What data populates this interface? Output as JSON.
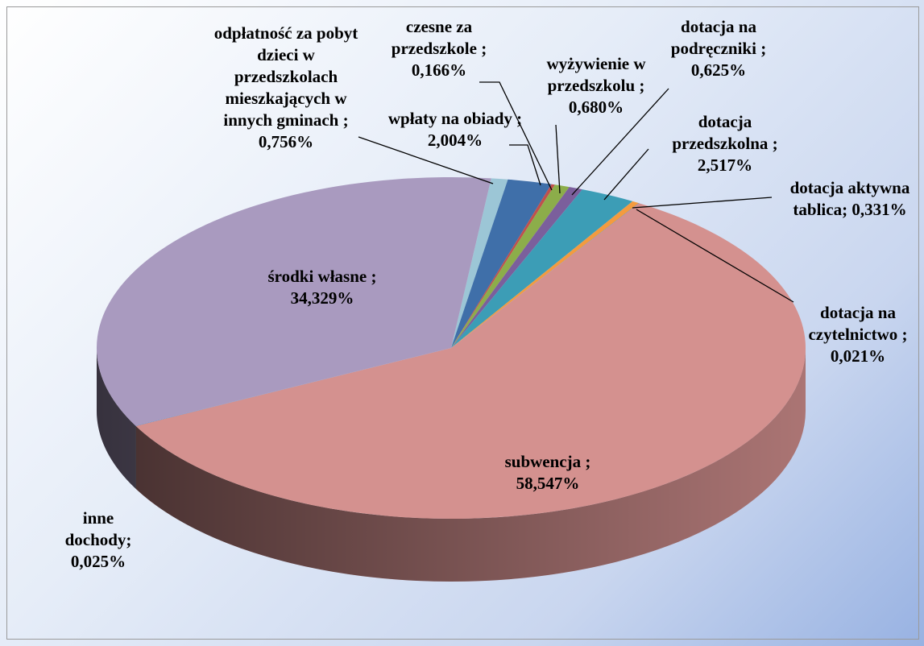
{
  "chart_data": {
    "type": "pie3d",
    "categories": [
      "odpłatność za pobyt dzieci w przedszkolach mieszkających w innych gminach ;",
      "wpłaty na obiady ;",
      "czesne za przedszkole ;",
      "wyżywienie w przedszkolu ;",
      "dotacja na podręczniki ;",
      "dotacja przedszkolna ;",
      "dotacja aktywna tablica;",
      "dotacja na czytelnictwo ;",
      "subwencja ;",
      "inne dochody;",
      "środki własne ;"
    ],
    "values": [
      0.756,
      2.004,
      0.166,
      0.68,
      0.625,
      2.517,
      0.331,
      0.021,
      58.547,
      0.025,
      34.329
    ],
    "value_labels": [
      "0,756%",
      "2,004%",
      "0,166%",
      "0,680%",
      "0,625%",
      "2,517%",
      "0,331%",
      "0,021%",
      "58,547%",
      "0,025%",
      "34,329%"
    ],
    "colors": [
      "#9cc6d6",
      "#3f6fa9",
      "#c0504d",
      "#8cad4a",
      "#7b5f9c",
      "#3c9db6",
      "#f39b3f",
      "#4f81bd",
      "#d4918f",
      "#4a7bbf",
      "#a99abf"
    ]
  }
}
